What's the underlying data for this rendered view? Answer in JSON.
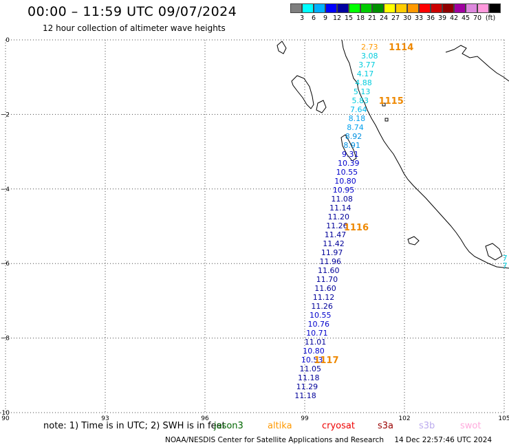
{
  "header": {
    "title": "00:00 – 11:59 UTC 09/07/2024",
    "subtitle": "12 hour collection of altimeter wave heights"
  },
  "legend": {
    "colors": [
      "#7f7f7f",
      "#00ffff",
      "#00b0ff",
      "#0000ff",
      "#0000a0",
      "#00ff00",
      "#00cc00",
      "#009000",
      "#ffff00",
      "#ffcc00",
      "#ff9900",
      "#ff0000",
      "#cc0000",
      "#900000",
      "#a000a0",
      "#dd88dd",
      "#ff99dd",
      "#000000"
    ],
    "labels": [
      "3",
      "6",
      "9",
      "12",
      "15",
      "18",
      "21",
      "24",
      "27",
      "30",
      "33",
      "36",
      "39",
      "42",
      "45",
      "70",
      "(ft)"
    ]
  },
  "axes": {
    "x_ticks": [
      "90",
      "93",
      "96",
      "99",
      "102",
      "105"
    ],
    "y_ticks": [
      "0",
      "−2",
      "−4",
      "−6",
      "−8",
      "−10"
    ]
  },
  "observations": [
    {
      "lon": 100.95,
      "lat": -0.18,
      "value": "2.73",
      "color": "#ff9900"
    },
    {
      "lon": 100.95,
      "lat": -0.42,
      "value": "3.08",
      "color": "#00ccdd"
    },
    {
      "lon": 100.87,
      "lat": -0.66,
      "value": "3.77",
      "color": "#00ccdd"
    },
    {
      "lon": 100.82,
      "lat": -0.9,
      "value": "4.17",
      "color": "#00ccdd"
    },
    {
      "lon": 100.77,
      "lat": -1.14,
      "value": "4.88",
      "color": "#00ccdd"
    },
    {
      "lon": 100.72,
      "lat": -1.38,
      "value": "5.13",
      "color": "#00ccdd"
    },
    {
      "lon": 100.67,
      "lat": -1.62,
      "value": "5.83",
      "color": "#00ccdd"
    },
    {
      "lon": 100.62,
      "lat": -1.86,
      "value": "7.64",
      "color": "#00bbee"
    },
    {
      "lon": 100.57,
      "lat": -2.1,
      "value": "8.18",
      "color": "#00a0ee"
    },
    {
      "lon": 100.52,
      "lat": -2.34,
      "value": "8.74",
      "color": "#00a0ee"
    },
    {
      "lon": 100.47,
      "lat": -2.58,
      "value": "8.92",
      "color": "#0090e0"
    },
    {
      "lon": 100.42,
      "lat": -2.82,
      "value": "8.91",
      "color": "#0090e0"
    },
    {
      "lon": 100.37,
      "lat": -3.06,
      "value": "9.31",
      "color": "#0000cc"
    },
    {
      "lon": 100.32,
      "lat": -3.3,
      "value": "10.39",
      "color": "#0000cc"
    },
    {
      "lon": 100.27,
      "lat": -3.54,
      "value": "10.55",
      "color": "#0000cc"
    },
    {
      "lon": 100.22,
      "lat": -3.78,
      "value": "10.80",
      "color": "#0000cc"
    },
    {
      "lon": 100.17,
      "lat": -4.02,
      "value": "10.95",
      "color": "#0000cc"
    },
    {
      "lon": 100.12,
      "lat": -4.26,
      "value": "11.08",
      "color": "#000099"
    },
    {
      "lon": 100.07,
      "lat": -4.5,
      "value": "11.14",
      "color": "#000099"
    },
    {
      "lon": 100.02,
      "lat": -4.74,
      "value": "11.20",
      "color": "#000099"
    },
    {
      "lon": 99.97,
      "lat": -4.98,
      "value": "11.26",
      "color": "#000099"
    },
    {
      "lon": 99.92,
      "lat": -5.22,
      "value": "11.47",
      "color": "#000099"
    },
    {
      "lon": 99.87,
      "lat": -5.46,
      "value": "11.42",
      "color": "#000099"
    },
    {
      "lon": 99.82,
      "lat": -5.7,
      "value": "11.97",
      "color": "#000099"
    },
    {
      "lon": 99.77,
      "lat": -5.94,
      "value": "11.96",
      "color": "#000099"
    },
    {
      "lon": 99.72,
      "lat": -6.18,
      "value": "11.60",
      "color": "#000099"
    },
    {
      "lon": 99.67,
      "lat": -6.42,
      "value": "11.70",
      "color": "#000099"
    },
    {
      "lon": 99.62,
      "lat": -6.66,
      "value": "11.60",
      "color": "#000099"
    },
    {
      "lon": 99.57,
      "lat": -6.9,
      "value": "11.12",
      "color": "#000099"
    },
    {
      "lon": 99.52,
      "lat": -7.14,
      "value": "11.26",
      "color": "#000099"
    },
    {
      "lon": 99.47,
      "lat": -7.38,
      "value": "10.55",
      "color": "#0000cc"
    },
    {
      "lon": 99.42,
      "lat": -7.62,
      "value": "10.76",
      "color": "#0000cc"
    },
    {
      "lon": 99.37,
      "lat": -7.86,
      "value": "10.71",
      "color": "#0000cc"
    },
    {
      "lon": 99.32,
      "lat": -8.1,
      "value": "11.01",
      "color": "#000099"
    },
    {
      "lon": 99.27,
      "lat": -8.34,
      "value": "10.80",
      "color": "#0000cc"
    },
    {
      "lon": 99.22,
      "lat": -8.58,
      "value": "10.53",
      "color": "#0000cc"
    },
    {
      "lon": 99.17,
      "lat": -8.82,
      "value": "11.05",
      "color": "#000099"
    },
    {
      "lon": 99.12,
      "lat": -9.06,
      "value": "11.18",
      "color": "#000099"
    },
    {
      "lon": 99.07,
      "lat": -9.3,
      "value": "11.29",
      "color": "#000099"
    },
    {
      "lon": 99.02,
      "lat": -9.54,
      "value": "11.18",
      "color": "#000099"
    }
  ],
  "pass_labels": [
    {
      "lon": 101.9,
      "lat": -0.18,
      "text": "1114",
      "color": "#ee8800"
    },
    {
      "lon": 101.6,
      "lat": -1.62,
      "text": "1115",
      "color": "#ee8800"
    },
    {
      "lon": 100.55,
      "lat": -5.02,
      "text": "1116",
      "color": "#ee8800"
    },
    {
      "lon": 99.65,
      "lat": -8.58,
      "text": "1117",
      "color": "#ee8800"
    }
  ],
  "edge_labels": [
    {
      "lon": 104.95,
      "lat": -5.85,
      "text": "7",
      "color": "#00ccdd"
    },
    {
      "lon": 104.95,
      "lat": -6.05,
      "text": "7",
      "color": "#00ccdd"
    }
  ],
  "note": {
    "text": "note:  1) Time is in UTC; 2) SWH is in feet",
    "satellites": [
      {
        "name": "jason3",
        "color": "#006600"
      },
      {
        "name": "altika",
        "color": "#ff9900"
      },
      {
        "name": "cryosat",
        "color": "#ee0000"
      },
      {
        "name": "s3a",
        "color": "#990000"
      },
      {
        "name": "s3b",
        "color": "#bbaaee"
      },
      {
        "name": "swot",
        "color": "#ffaadd"
      }
    ]
  },
  "footer": {
    "credit": "NOAA/NESDIS Center for Satellite Applications and Research",
    "timestamp": "14 Dec 22:57:46 UTC 2024"
  }
}
